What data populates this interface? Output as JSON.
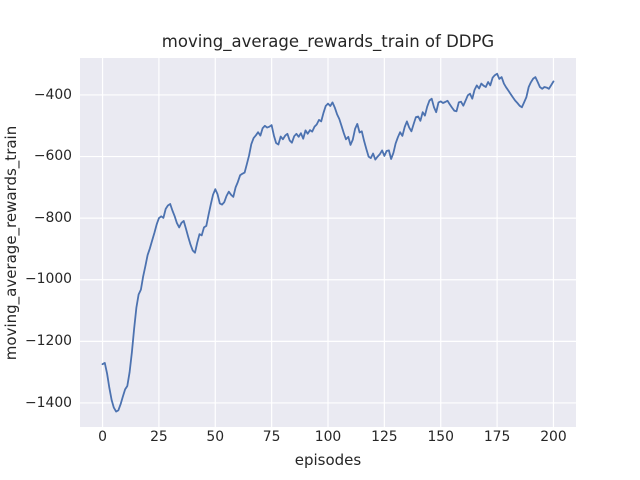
{
  "chart_data": {
    "type": "line",
    "title": "moving_average_rewards_train of DDPG",
    "xlabel": "episodes",
    "ylabel": "moving_average_rewards_train",
    "legend": null,
    "grid": true,
    "style": "seaborn-darkgrid",
    "xlim": [
      -10,
      210
    ],
    "ylim": [
      -1480,
      -280
    ],
    "x_ticks": [
      0,
      25,
      50,
      75,
      100,
      125,
      150,
      175,
      200
    ],
    "x_tick_labels": [
      "0",
      "25",
      "50",
      "75",
      "100",
      "125",
      "150",
      "175",
      "200"
    ],
    "y_ticks": [
      -400,
      -600,
      -800,
      -1000,
      -1200,
      -1400
    ],
    "y_tick_labels": [
      "−400",
      "−600",
      "−800",
      "−1000",
      "−1200",
      "−1400"
    ],
    "colors": {
      "line": "#4c72b0",
      "plot_background": "#eaeaf2",
      "gridline": "#ffffff",
      "figure_background": "#ffffff",
      "text": "#262626"
    },
    "series": [
      {
        "name": "moving_average_rewards_train",
        "points": [
          [
            0,
            -1274
          ],
          [
            1,
            -1270
          ],
          [
            2,
            -1305
          ],
          [
            3,
            -1350
          ],
          [
            4,
            -1390
          ],
          [
            5,
            -1415
          ],
          [
            6,
            -1428
          ],
          [
            7,
            -1424
          ],
          [
            8,
            -1404
          ],
          [
            9,
            -1380
          ],
          [
            10,
            -1356
          ],
          [
            11,
            -1345
          ],
          [
            12,
            -1300
          ],
          [
            13,
            -1235
          ],
          [
            14,
            -1160
          ],
          [
            15,
            -1090
          ],
          [
            16,
            -1048
          ],
          [
            17,
            -1032
          ],
          [
            18,
            -990
          ],
          [
            19,
            -955
          ],
          [
            20,
            -920
          ],
          [
            21,
            -898
          ],
          [
            22,
            -873
          ],
          [
            23,
            -848
          ],
          [
            24,
            -820
          ],
          [
            25,
            -800
          ],
          [
            26,
            -794
          ],
          [
            27,
            -799
          ],
          [
            28,
            -770
          ],
          [
            29,
            -759
          ],
          [
            30,
            -754
          ],
          [
            31,
            -775
          ],
          [
            32,
            -794
          ],
          [
            33,
            -816
          ],
          [
            34,
            -830
          ],
          [
            35,
            -815
          ],
          [
            36,
            -809
          ],
          [
            37,
            -835
          ],
          [
            38,
            -861
          ],
          [
            39,
            -886
          ],
          [
            40,
            -905
          ],
          [
            41,
            -912
          ],
          [
            42,
            -880
          ],
          [
            43,
            -852
          ],
          [
            44,
            -856
          ],
          [
            45,
            -830
          ],
          [
            46,
            -825
          ],
          [
            47,
            -790
          ],
          [
            48,
            -755
          ],
          [
            49,
            -724
          ],
          [
            50,
            -706
          ],
          [
            51,
            -722
          ],
          [
            52,
            -752
          ],
          [
            53,
            -756
          ],
          [
            54,
            -748
          ],
          [
            55,
            -728
          ],
          [
            56,
            -714
          ],
          [
            57,
            -724
          ],
          [
            58,
            -731
          ],
          [
            59,
            -700
          ],
          [
            60,
            -683
          ],
          [
            61,
            -661
          ],
          [
            62,
            -656
          ],
          [
            63,
            -652
          ],
          [
            64,
            -625
          ],
          [
            65,
            -596
          ],
          [
            66,
            -560
          ],
          [
            67,
            -540
          ],
          [
            68,
            -531
          ],
          [
            69,
            -521
          ],
          [
            70,
            -532
          ],
          [
            71,
            -508
          ],
          [
            72,
            -500
          ],
          [
            73,
            -506
          ],
          [
            74,
            -503
          ],
          [
            75,
            -498
          ],
          [
            76,
            -532
          ],
          [
            77,
            -556
          ],
          [
            78,
            -561
          ],
          [
            79,
            -535
          ],
          [
            80,
            -544
          ],
          [
            81,
            -532
          ],
          [
            82,
            -526
          ],
          [
            83,
            -548
          ],
          [
            84,
            -555
          ],
          [
            85,
            -534
          ],
          [
            86,
            -526
          ],
          [
            87,
            -536
          ],
          [
            88,
            -524
          ],
          [
            89,
            -542
          ],
          [
            90,
            -515
          ],
          [
            91,
            -526
          ],
          [
            92,
            -514
          ],
          [
            93,
            -519
          ],
          [
            94,
            -503
          ],
          [
            95,
            -496
          ],
          [
            96,
            -481
          ],
          [
            97,
            -486
          ],
          [
            98,
            -458
          ],
          [
            99,
            -436
          ],
          [
            100,
            -428
          ],
          [
            101,
            -436
          ],
          [
            102,
            -424
          ],
          [
            103,
            -441
          ],
          [
            104,
            -462
          ],
          [
            105,
            -478
          ],
          [
            106,
            -500
          ],
          [
            107,
            -524
          ],
          [
            108,
            -544
          ],
          [
            109,
            -536
          ],
          [
            110,
            -562
          ],
          [
            111,
            -545
          ],
          [
            112,
            -510
          ],
          [
            113,
            -494
          ],
          [
            114,
            -522
          ],
          [
            115,
            -518
          ],
          [
            116,
            -549
          ],
          [
            117,
            -575
          ],
          [
            118,
            -600
          ],
          [
            119,
            -605
          ],
          [
            120,
            -590
          ],
          [
            121,
            -610
          ],
          [
            122,
            -600
          ],
          [
            123,
            -592
          ],
          [
            124,
            -580
          ],
          [
            125,
            -598
          ],
          [
            126,
            -582
          ],
          [
            127,
            -580
          ],
          [
            128,
            -608
          ],
          [
            129,
            -588
          ],
          [
            130,
            -558
          ],
          [
            131,
            -537
          ],
          [
            132,
            -521
          ],
          [
            133,
            -533
          ],
          [
            134,
            -504
          ],
          [
            135,
            -486
          ],
          [
            136,
            -506
          ],
          [
            137,
            -518
          ],
          [
            138,
            -494
          ],
          [
            139,
            -472
          ],
          [
            140,
            -470
          ],
          [
            141,
            -484
          ],
          [
            142,
            -456
          ],
          [
            143,
            -467
          ],
          [
            144,
            -438
          ],
          [
            145,
            -418
          ],
          [
            146,
            -412
          ],
          [
            147,
            -440
          ],
          [
            148,
            -456
          ],
          [
            149,
            -424
          ],
          [
            150,
            -421
          ],
          [
            151,
            -426
          ],
          [
            152,
            -423
          ],
          [
            153,
            -419
          ],
          [
            154,
            -430
          ],
          [
            155,
            -441
          ],
          [
            156,
            -451
          ],
          [
            157,
            -453
          ],
          [
            158,
            -424
          ],
          [
            159,
            -422
          ],
          [
            160,
            -435
          ],
          [
            161,
            -419
          ],
          [
            162,
            -401
          ],
          [
            163,
            -396
          ],
          [
            164,
            -412
          ],
          [
            165,
            -384
          ],
          [
            166,
            -369
          ],
          [
            167,
            -379
          ],
          [
            168,
            -363
          ],
          [
            169,
            -370
          ],
          [
            170,
            -374
          ],
          [
            171,
            -358
          ],
          [
            172,
            -369
          ],
          [
            173,
            -344
          ],
          [
            174,
            -336
          ],
          [
            175,
            -331
          ],
          [
            176,
            -348
          ],
          [
            177,
            -342
          ],
          [
            178,
            -363
          ],
          [
            179,
            -375
          ],
          [
            180,
            -386
          ],
          [
            181,
            -397
          ],
          [
            182,
            -408
          ],
          [
            183,
            -418
          ],
          [
            184,
            -426
          ],
          [
            185,
            -435
          ],
          [
            186,
            -440
          ],
          [
            187,
            -424
          ],
          [
            188,
            -407
          ],
          [
            189,
            -374
          ],
          [
            190,
            -359
          ],
          [
            191,
            -347
          ],
          [
            192,
            -342
          ],
          [
            193,
            -358
          ],
          [
            194,
            -374
          ],
          [
            195,
            -380
          ],
          [
            196,
            -374
          ],
          [
            197,
            -376
          ],
          [
            198,
            -380
          ],
          [
            199,
            -368
          ],
          [
            200,
            -356
          ]
        ]
      }
    ]
  }
}
